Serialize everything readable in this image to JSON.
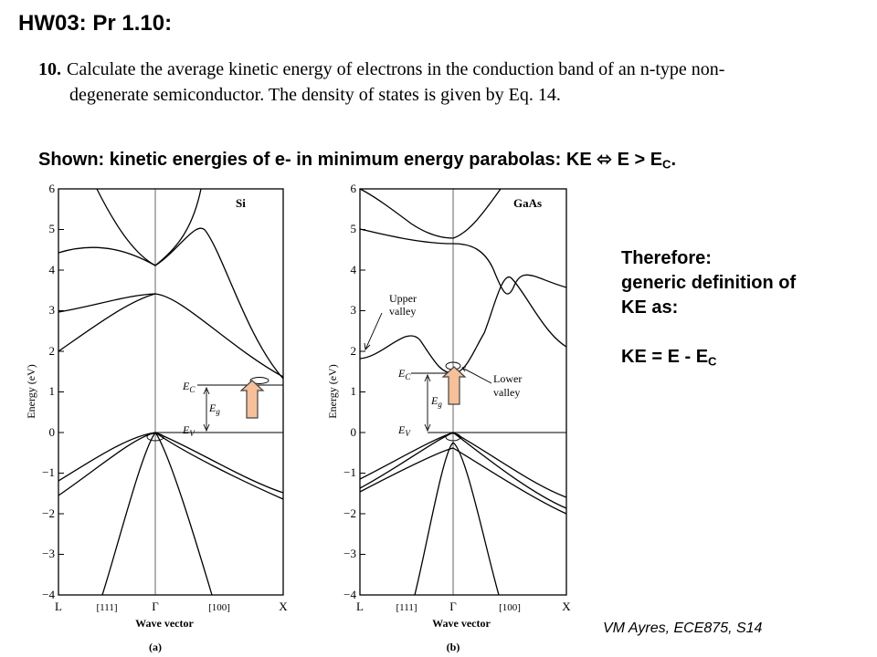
{
  "title": "HW03: Pr 1.10:",
  "problem": {
    "number": "10.",
    "line1": "Calculate the average kinetic energy of electrons in the conduction band of an n-type non-",
    "line2": "degenerate semiconductor. The density of states is given by Eq. 14."
  },
  "shown": {
    "prefix": "Shown: kinetic energies of e- in minimum energy parabolas: KE ",
    "arrow": "⬄",
    "mid": " E > E",
    "sub": "C",
    "end": "."
  },
  "therefore": {
    "l1": "Therefore:",
    "l2": "generic definition of",
    "l3": "KE as:",
    "formula_main": "KE = E - E",
    "formula_sub": "C"
  },
  "footer": "VM Ayres, ECE875, S14",
  "diagram_si": {
    "material": "Si",
    "caption": "(a)",
    "ylabel": "Energy (eV)",
    "xlabel": "Wave vector",
    "yticks": [
      "6",
      "5",
      "4",
      "3",
      "2",
      "1",
      "0",
      "−1",
      "−2",
      "−3",
      "−4"
    ],
    "xticks": [
      "L",
      "[111]",
      "Γ",
      "[100]",
      "X"
    ],
    "ec_label": "E",
    "ec_sub": "C",
    "eg_label": "E",
    "eg_sub": "g",
    "ev_label": "E",
    "ev_sub": "V"
  },
  "diagram_gaas": {
    "material": "GaAs",
    "caption": "(b)",
    "ylabel": "Energy (eV)",
    "xlabel": "Wave vector",
    "yticks": [
      "6",
      "5",
      "4",
      "3",
      "2",
      "1",
      "0",
      "−1",
      "−2",
      "−3",
      "−4"
    ],
    "xticks": [
      "L",
      "[111]",
      "Γ",
      "[100]",
      "X"
    ],
    "ec_label": "E",
    "ec_sub": "C",
    "eg_label": "E",
    "eg_sub": "g",
    "ev_label": "E",
    "ev_sub": "V",
    "upper_valley_1": "Upper",
    "upper_valley_2": "valley",
    "lower_valley_1": "Lower",
    "lower_valley_2": "valley"
  },
  "colors": {
    "arrow_fill": "#f5c09a",
    "arrow_stroke": "#444444"
  }
}
